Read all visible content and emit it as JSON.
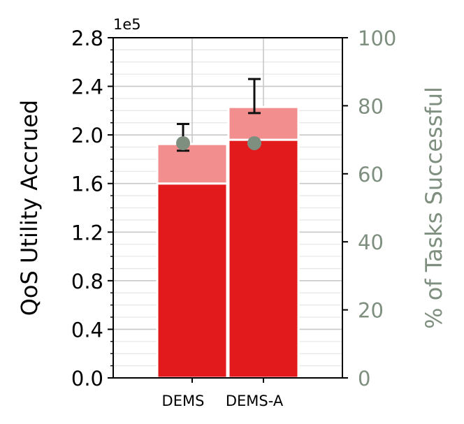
{
  "chart_data": {
    "type": "bar",
    "subtype": "stacked with error bars and secondary-axis points",
    "categories": [
      "DEMS",
      "DEMS-A"
    ],
    "series": [
      {
        "values": [
          160000,
          196000
        ],
        "color": "#e31a1c"
      },
      {
        "values": [
          32500,
          27000
        ],
        "color": "#f28e8e"
      }
    ],
    "error_bars": {
      "center": [
        198000,
        232000
      ],
      "lower": [
        187000,
        218000
      ],
      "upper": [
        209000,
        246000
      ]
    },
    "secondary_points": {
      "values": [
        69,
        69
      ],
      "color": "#7f8f7f"
    },
    "ylabel": "QoS Utility Accrued",
    "y2label": "% of Tasks Successful",
    "ylim": [
      0,
      280000
    ],
    "y2lim": [
      0,
      100
    ],
    "y_ticks": [
      0,
      40000,
      80000,
      120000,
      160000,
      200000,
      240000,
      280000
    ],
    "y_tick_labels": [
      "0.0",
      "0.4",
      "0.8",
      "1.2",
      "1.6",
      "2.0",
      "2.4",
      "2.8"
    ],
    "y_offset_label": "1e5",
    "y2_ticks": [
      0,
      20,
      40,
      60,
      80,
      100
    ],
    "y2_tick_labels": [
      "0",
      "20",
      "40",
      "60",
      "80",
      "100"
    ],
    "grid": true,
    "colors": {
      "secondary_axis": "#7f8f7f"
    }
  }
}
